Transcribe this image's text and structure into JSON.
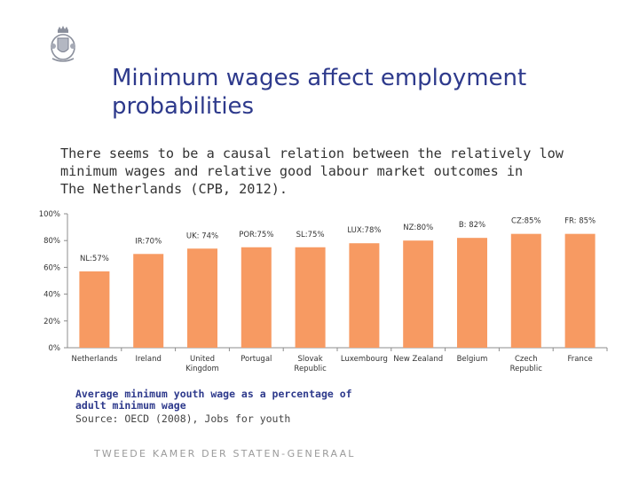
{
  "header": {
    "logo_icon": "coat-of-arms-icon",
    "title_lines": [
      "Minimum wages affect employment",
      "probabilities"
    ]
  },
  "intro": {
    "lines": [
      "There seems to be a causal relation between the relatively low",
      "minimum wages and relative good labour market outcomes in",
      "The Netherlands (CPB, 2012)."
    ]
  },
  "chart_data": {
    "type": "bar",
    "categories": [
      "Netherlands",
      "Ireland",
      "United Kingdom",
      "Portugal",
      "Slovak Republic",
      "Luxembourg",
      "New Zealand",
      "Belgium",
      "Czech Republic",
      "France"
    ],
    "category_lines": [
      [
        "Netherlands"
      ],
      [
        "Ireland"
      ],
      [
        "United",
        "Kingdom"
      ],
      [
        "Portugal"
      ],
      [
        "Slovak",
        "Republic"
      ],
      [
        "Luxembourg"
      ],
      [
        "New Zealand"
      ],
      [
        "Belgium"
      ],
      [
        "Czech",
        "Republic"
      ],
      [
        "France"
      ]
    ],
    "values": [
      57,
      70,
      74,
      75,
      75,
      78,
      80,
      82,
      85,
      85
    ],
    "data_labels": [
      "NL:57%",
      "IR:70%",
      "UK: 74%",
      "POR:75%",
      "SL:75%",
      "LUX:78%",
      "NZ:80%",
      "B: 82%",
      "CZ:85%",
      "FR: 85%"
    ],
    "yticks": [
      "0%",
      "20%",
      "40%",
      "60%",
      "80%",
      "100%"
    ],
    "ylim": [
      0,
      100
    ],
    "bar_color": "#f79a62",
    "axis_color": "#8c8c8c"
  },
  "caption": {
    "main_lines": [
      "Average minimum youth wage as a percentage of",
      "adult minimum wage"
    ],
    "source": "Source: OECD (2008), Jobs for youth"
  },
  "footer": {
    "text": "TWEEDE KAMER DER STATEN-GENERAAL"
  },
  "colors": {
    "title": "#2e3a8c",
    "footer": "#9a9a9a"
  }
}
